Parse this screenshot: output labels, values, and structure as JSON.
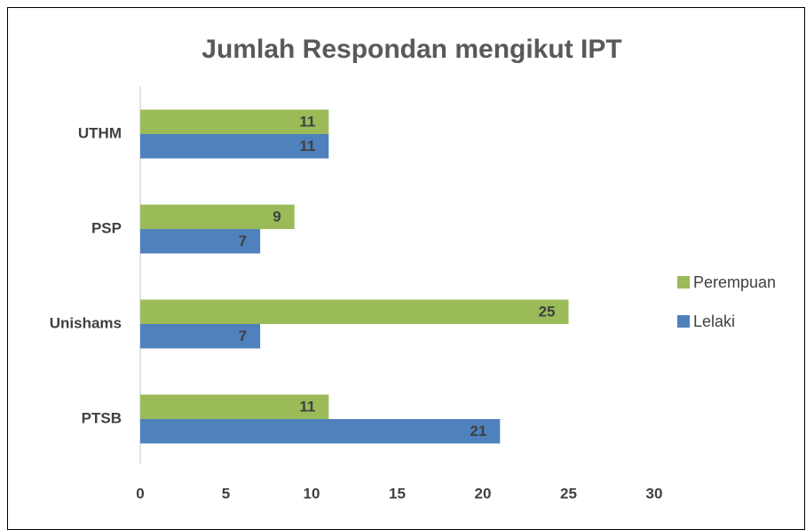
{
  "chart_data": {
    "type": "hbar",
    "title": "Jumlah Respondan mengikut IPT",
    "categories": [
      "UTHM",
      "PSP",
      "Unishams",
      "PTSB"
    ],
    "series": [
      {
        "name": "Perempuan",
        "color": "#9bbb59",
        "values": [
          11,
          9,
          25,
          11
        ]
      },
      {
        "name": "Lelaki",
        "color": "#4f81bd",
        "values": [
          11,
          7,
          7,
          21
        ]
      }
    ],
    "xlim": [
      0,
      30
    ],
    "xticks": [
      0,
      5,
      10,
      15,
      20,
      25,
      30
    ],
    "grid": false,
    "legend": "right"
  }
}
